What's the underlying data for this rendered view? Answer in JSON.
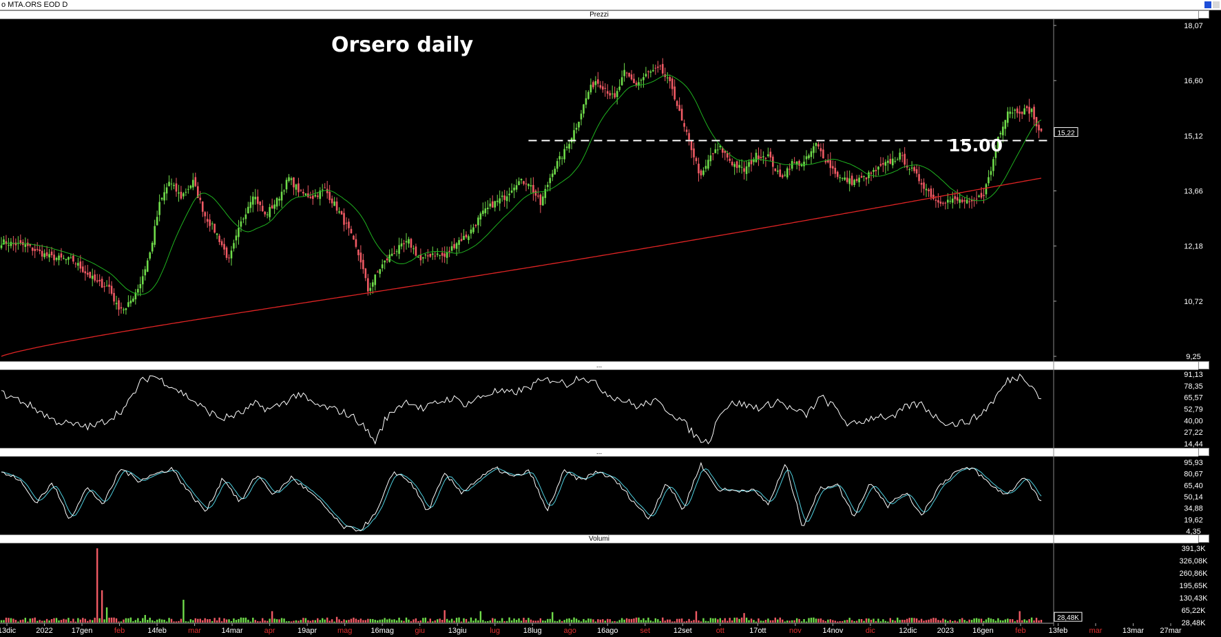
{
  "window_title": "o MTA.ORS EOD D",
  "panes": {
    "prices": "Prezzi",
    "rsi": "...",
    "stoch": "...",
    "volume": "Volumi"
  },
  "annotations": {
    "title": "Orsero daily",
    "level_label": "15.00",
    "last_price": "15,22"
  },
  "colors": {
    "up": "#6fdc4a",
    "down": "#f05a64",
    "ma_short": "#1fb31f",
    "ma_long": "#e02424",
    "rsi": "#ffffff",
    "stoch_k": "#ffffff",
    "stoch_d": "#4fd0e0"
  },
  "chart_data": [
    {
      "type": "candlestick",
      "title": "Orsero daily",
      "pane": "Prezzi",
      "ylim": [
        9.25,
        18.07
      ],
      "yticks": [
        "18,07",
        "16,60",
        "15,12",
        "13,66",
        "12,18",
        "10,72",
        "9,25"
      ],
      "last_price": 15.22,
      "horizontal_line": {
        "value": 15.0,
        "label": "15.00",
        "style": "dashed"
      },
      "x_ticks": [
        {
          "label": "13dic",
          "red": false
        },
        {
          "label": "2022",
          "red": false
        },
        {
          "label": "17gen",
          "red": false
        },
        {
          "label": "feb",
          "red": true
        },
        {
          "label": "14feb",
          "red": false
        },
        {
          "label": "mar",
          "red": true
        },
        {
          "label": "14mar",
          "red": false
        },
        {
          "label": "apr",
          "red": true
        },
        {
          "label": "19apr",
          "red": false
        },
        {
          "label": "mag",
          "red": true
        },
        {
          "label": "16mag",
          "red": false
        },
        {
          "label": "giu",
          "red": true
        },
        {
          "label": "13giu",
          "red": false
        },
        {
          "label": "lug",
          "red": true
        },
        {
          "label": "18lug",
          "red": false
        },
        {
          "label": "ago",
          "red": true
        },
        {
          "label": "16ago",
          "red": false
        },
        {
          "label": "set",
          "red": true
        },
        {
          "label": "12set",
          "red": false
        },
        {
          "label": "ott",
          "red": true
        },
        {
          "label": "17ott",
          "red": false
        },
        {
          "label": "nov",
          "red": true
        },
        {
          "label": "14nov",
          "red": false
        },
        {
          "label": "dic",
          "red": true
        },
        {
          "label": "12dic",
          "red": false
        },
        {
          "label": "2023",
          "red": false
        },
        {
          "label": "16gen",
          "red": false
        },
        {
          "label": "feb",
          "red": true
        },
        {
          "label": "13feb",
          "red": false
        },
        {
          "label": "mar",
          "red": true
        },
        {
          "label": "13mar",
          "red": false
        },
        {
          "label": "27mar",
          "red": false
        }
      ],
      "close_path": [
        [
          0,
          12.3
        ],
        [
          10,
          12.2
        ],
        [
          20,
          11.9
        ],
        [
          30,
          11.8
        ],
        [
          40,
          11.2
        ],
        [
          45,
          11.1
        ],
        [
          48,
          10.6
        ],
        [
          52,
          10.5
        ],
        [
          58,
          11.2
        ],
        [
          62,
          12.0
        ],
        [
          66,
          13.3
        ],
        [
          70,
          13.9
        ],
        [
          75,
          13.5
        ],
        [
          80,
          13.9
        ],
        [
          85,
          13.0
        ],
        [
          90,
          12.5
        ],
        [
          95,
          11.8
        ],
        [
          100,
          12.8
        ],
        [
          105,
          13.6
        ],
        [
          110,
          13.0
        ],
        [
          115,
          13.4
        ],
        [
          120,
          14.0
        ],
        [
          125,
          13.6
        ],
        [
          130,
          13.5
        ],
        [
          135,
          13.7
        ],
        [
          140,
          13.2
        ],
        [
          145,
          12.6
        ],
        [
          150,
          11.8
        ],
        [
          153,
          11.0
        ],
        [
          158,
          11.6
        ],
        [
          163,
          12.0
        ],
        [
          170,
          12.3
        ],
        [
          175,
          11.8
        ],
        [
          180,
          12.0
        ],
        [
          185,
          11.9
        ],
        [
          190,
          12.3
        ],
        [
          195,
          12.5
        ],
        [
          200,
          13.0
        ],
        [
          205,
          13.3
        ],
        [
          210,
          13.5
        ],
        [
          215,
          13.9
        ],
        [
          220,
          13.9
        ],
        [
          225,
          13.3
        ],
        [
          230,
          14.2
        ],
        [
          235,
          14.7
        ],
        [
          240,
          15.4
        ],
        [
          245,
          16.3
        ],
        [
          248,
          16.6
        ],
        [
          252,
          16.4
        ],
        [
          256,
          16.1
        ],
        [
          260,
          16.8
        ],
        [
          265,
          16.5
        ],
        [
          270,
          16.8
        ],
        [
          275,
          16.9
        ],
        [
          280,
          16.4
        ],
        [
          284,
          15.5
        ],
        [
          288,
          14.8
        ],
        [
          292,
          14.0
        ],
        [
          296,
          14.6
        ],
        [
          300,
          14.8
        ],
        [
          305,
          14.4
        ],
        [
          310,
          14.2
        ],
        [
          315,
          14.6
        ],
        [
          320,
          14.6
        ],
        [
          325,
          14.0
        ],
        [
          330,
          14.4
        ],
        [
          335,
          14.4
        ],
        [
          340,
          14.9
        ],
        [
          345,
          14.4
        ],
        [
          350,
          14.0
        ],
        [
          355,
          13.9
        ],
        [
          360,
          14.0
        ],
        [
          365,
          14.2
        ],
        [
          370,
          14.4
        ],
        [
          375,
          14.6
        ],
        [
          380,
          14.2
        ],
        [
          385,
          13.8
        ],
        [
          390,
          13.4
        ],
        [
          395,
          13.4
        ],
        [
          400,
          13.4
        ],
        [
          405,
          13.3
        ],
        [
          410,
          13.6
        ],
        [
          413,
          14.2
        ],
        [
          416,
          15.1
        ],
        [
          420,
          15.8
        ],
        [
          425,
          15.8
        ],
        [
          430,
          15.8
        ],
        [
          433,
          15.2
        ]
      ]
    },
    {
      "type": "line",
      "pane": "rsi",
      "ylim": [
        14.44,
        91.13
      ],
      "yticks": [
        "91,13",
        "78,35",
        "65,57",
        "52,79",
        "40,00",
        "27,22",
        "14,44"
      ],
      "path": [
        [
          0,
          70
        ],
        [
          8,
          62
        ],
        [
          15,
          52
        ],
        [
          22,
          40
        ],
        [
          30,
          35
        ],
        [
          38,
          33
        ],
        [
          45,
          42
        ],
        [
          52,
          55
        ],
        [
          58,
          82
        ],
        [
          63,
          90
        ],
        [
          70,
          80
        ],
        [
          78,
          66
        ],
        [
          85,
          52
        ],
        [
          92,
          42
        ],
        [
          100,
          48
        ],
        [
          106,
          58
        ],
        [
          112,
          52
        ],
        [
          118,
          60
        ],
        [
          124,
          70
        ],
        [
          130,
          58
        ],
        [
          136,
          54
        ],
        [
          142,
          50
        ],
        [
          148,
          42
        ],
        [
          153,
          28
        ],
        [
          156,
          15
        ],
        [
          160,
          40
        ],
        [
          165,
          55
        ],
        [
          170,
          62
        ],
        [
          176,
          52
        ],
        [
          182,
          60
        ],
        [
          188,
          65
        ],
        [
          194,
          58
        ],
        [
          200,
          66
        ],
        [
          206,
          72
        ],
        [
          212,
          70
        ],
        [
          218,
          74
        ],
        [
          224,
          82
        ],
        [
          230,
          86
        ],
        [
          236,
          80
        ],
        [
          242,
          90
        ],
        [
          248,
          80
        ],
        [
          254,
          68
        ],
        [
          260,
          62
        ],
        [
          266,
          55
        ],
        [
          272,
          62
        ],
        [
          278,
          52
        ],
        [
          284,
          40
        ],
        [
          290,
          22
        ],
        [
          295,
          15
        ],
        [
          300,
          50
        ],
        [
          306,
          60
        ],
        [
          312,
          56
        ],
        [
          318,
          54
        ],
        [
          324,
          62
        ],
        [
          330,
          52
        ],
        [
          336,
          46
        ],
        [
          342,
          66
        ],
        [
          348,
          54
        ],
        [
          354,
          34
        ],
        [
          360,
          40
        ],
        [
          366,
          46
        ],
        [
          372,
          42
        ],
        [
          378,
          56
        ],
        [
          384,
          58
        ],
        [
          390,
          44
        ],
        [
          396,
          36
        ],
        [
          402,
          38
        ],
        [
          408,
          45
        ],
        [
          414,
          62
        ],
        [
          420,
          84
        ],
        [
          426,
          90
        ],
        [
          430,
          80
        ],
        [
          433,
          66
        ]
      ]
    },
    {
      "type": "line",
      "pane": "stoch",
      "ylim": [
        4.35,
        95.93
      ],
      "yticks": [
        "95,93",
        "80,67",
        "65,40",
        "50,14",
        "34,88",
        "19,62",
        "4,35"
      ],
      "series": [
        {
          "values": [
            [
              0,
              82
            ],
            [
              6,
              74
            ],
            [
              12,
              42
            ],
            [
              18,
              68
            ],
            [
              24,
              20
            ],
            [
              30,
              62
            ],
            [
              36,
              40
            ],
            [
              42,
              88
            ],
            [
              48,
              72
            ],
            [
              54,
              80
            ],
            [
              60,
              88
            ],
            [
              66,
              56
            ],
            [
              72,
              30
            ],
            [
              78,
              76
            ],
            [
              84,
              42
            ],
            [
              90,
              80
            ],
            [
              96,
              52
            ],
            [
              102,
              76
            ],
            [
              108,
              58
            ],
            [
              114,
              36
            ],
            [
              120,
              10
            ],
            [
              126,
              5
            ],
            [
              132,
              28
            ],
            [
              138,
              84
            ],
            [
              144,
              70
            ],
            [
              150,
              30
            ],
            [
              156,
              80
            ],
            [
              162,
              56
            ],
            [
              168,
              74
            ],
            [
              174,
              88
            ],
            [
              180,
              76
            ],
            [
              186,
              84
            ],
            [
              192,
              30
            ],
            [
              198,
              84
            ],
            [
              204,
              72
            ],
            [
              210,
              84
            ],
            [
              216,
              72
            ],
            [
              222,
              46
            ],
            [
              228,
              20
            ],
            [
              234,
              70
            ],
            [
              240,
              32
            ],
            [
              246,
              94
            ],
            [
              252,
              60
            ],
            [
              258,
              58
            ],
            [
              264,
              60
            ],
            [
              270,
              40
            ],
            [
              276,
              94
            ],
            [
              282,
              10
            ],
            [
              288,
              60
            ],
            [
              294,
              68
            ],
            [
              300,
              24
            ],
            [
              306,
              70
            ],
            [
              312,
              38
            ],
            [
              318,
              56
            ],
            [
              324,
              26
            ],
            [
              330,
              64
            ],
            [
              336,
              84
            ],
            [
              342,
              88
            ],
            [
              348,
              66
            ],
            [
              354,
              52
            ],
            [
              360,
              78
            ],
            [
              366,
              42
            ]
          ]
        }
      ]
    },
    {
      "type": "bar",
      "pane": "Volumi",
      "ylim": [
        0,
        391300
      ],
      "yticks": [
        "391,3K",
        "326,08K",
        "260,86K",
        "195,65K",
        "130,43K",
        "65,22K",
        "28,48K"
      ],
      "last_value": "28,48K",
      "spikes": [
        [
          40,
          391
        ],
        [
          42,
          170
        ],
        [
          44,
          80
        ],
        [
          60,
          40
        ],
        [
          76,
          120
        ],
        [
          113,
          60
        ],
        [
          140,
          30
        ],
        [
          185,
          65
        ],
        [
          200,
          60
        ],
        [
          230,
          55
        ],
        [
          290,
          60
        ],
        [
          310,
          50
        ],
        [
          425,
          60
        ]
      ],
      "base_level": "28,48K"
    }
  ]
}
